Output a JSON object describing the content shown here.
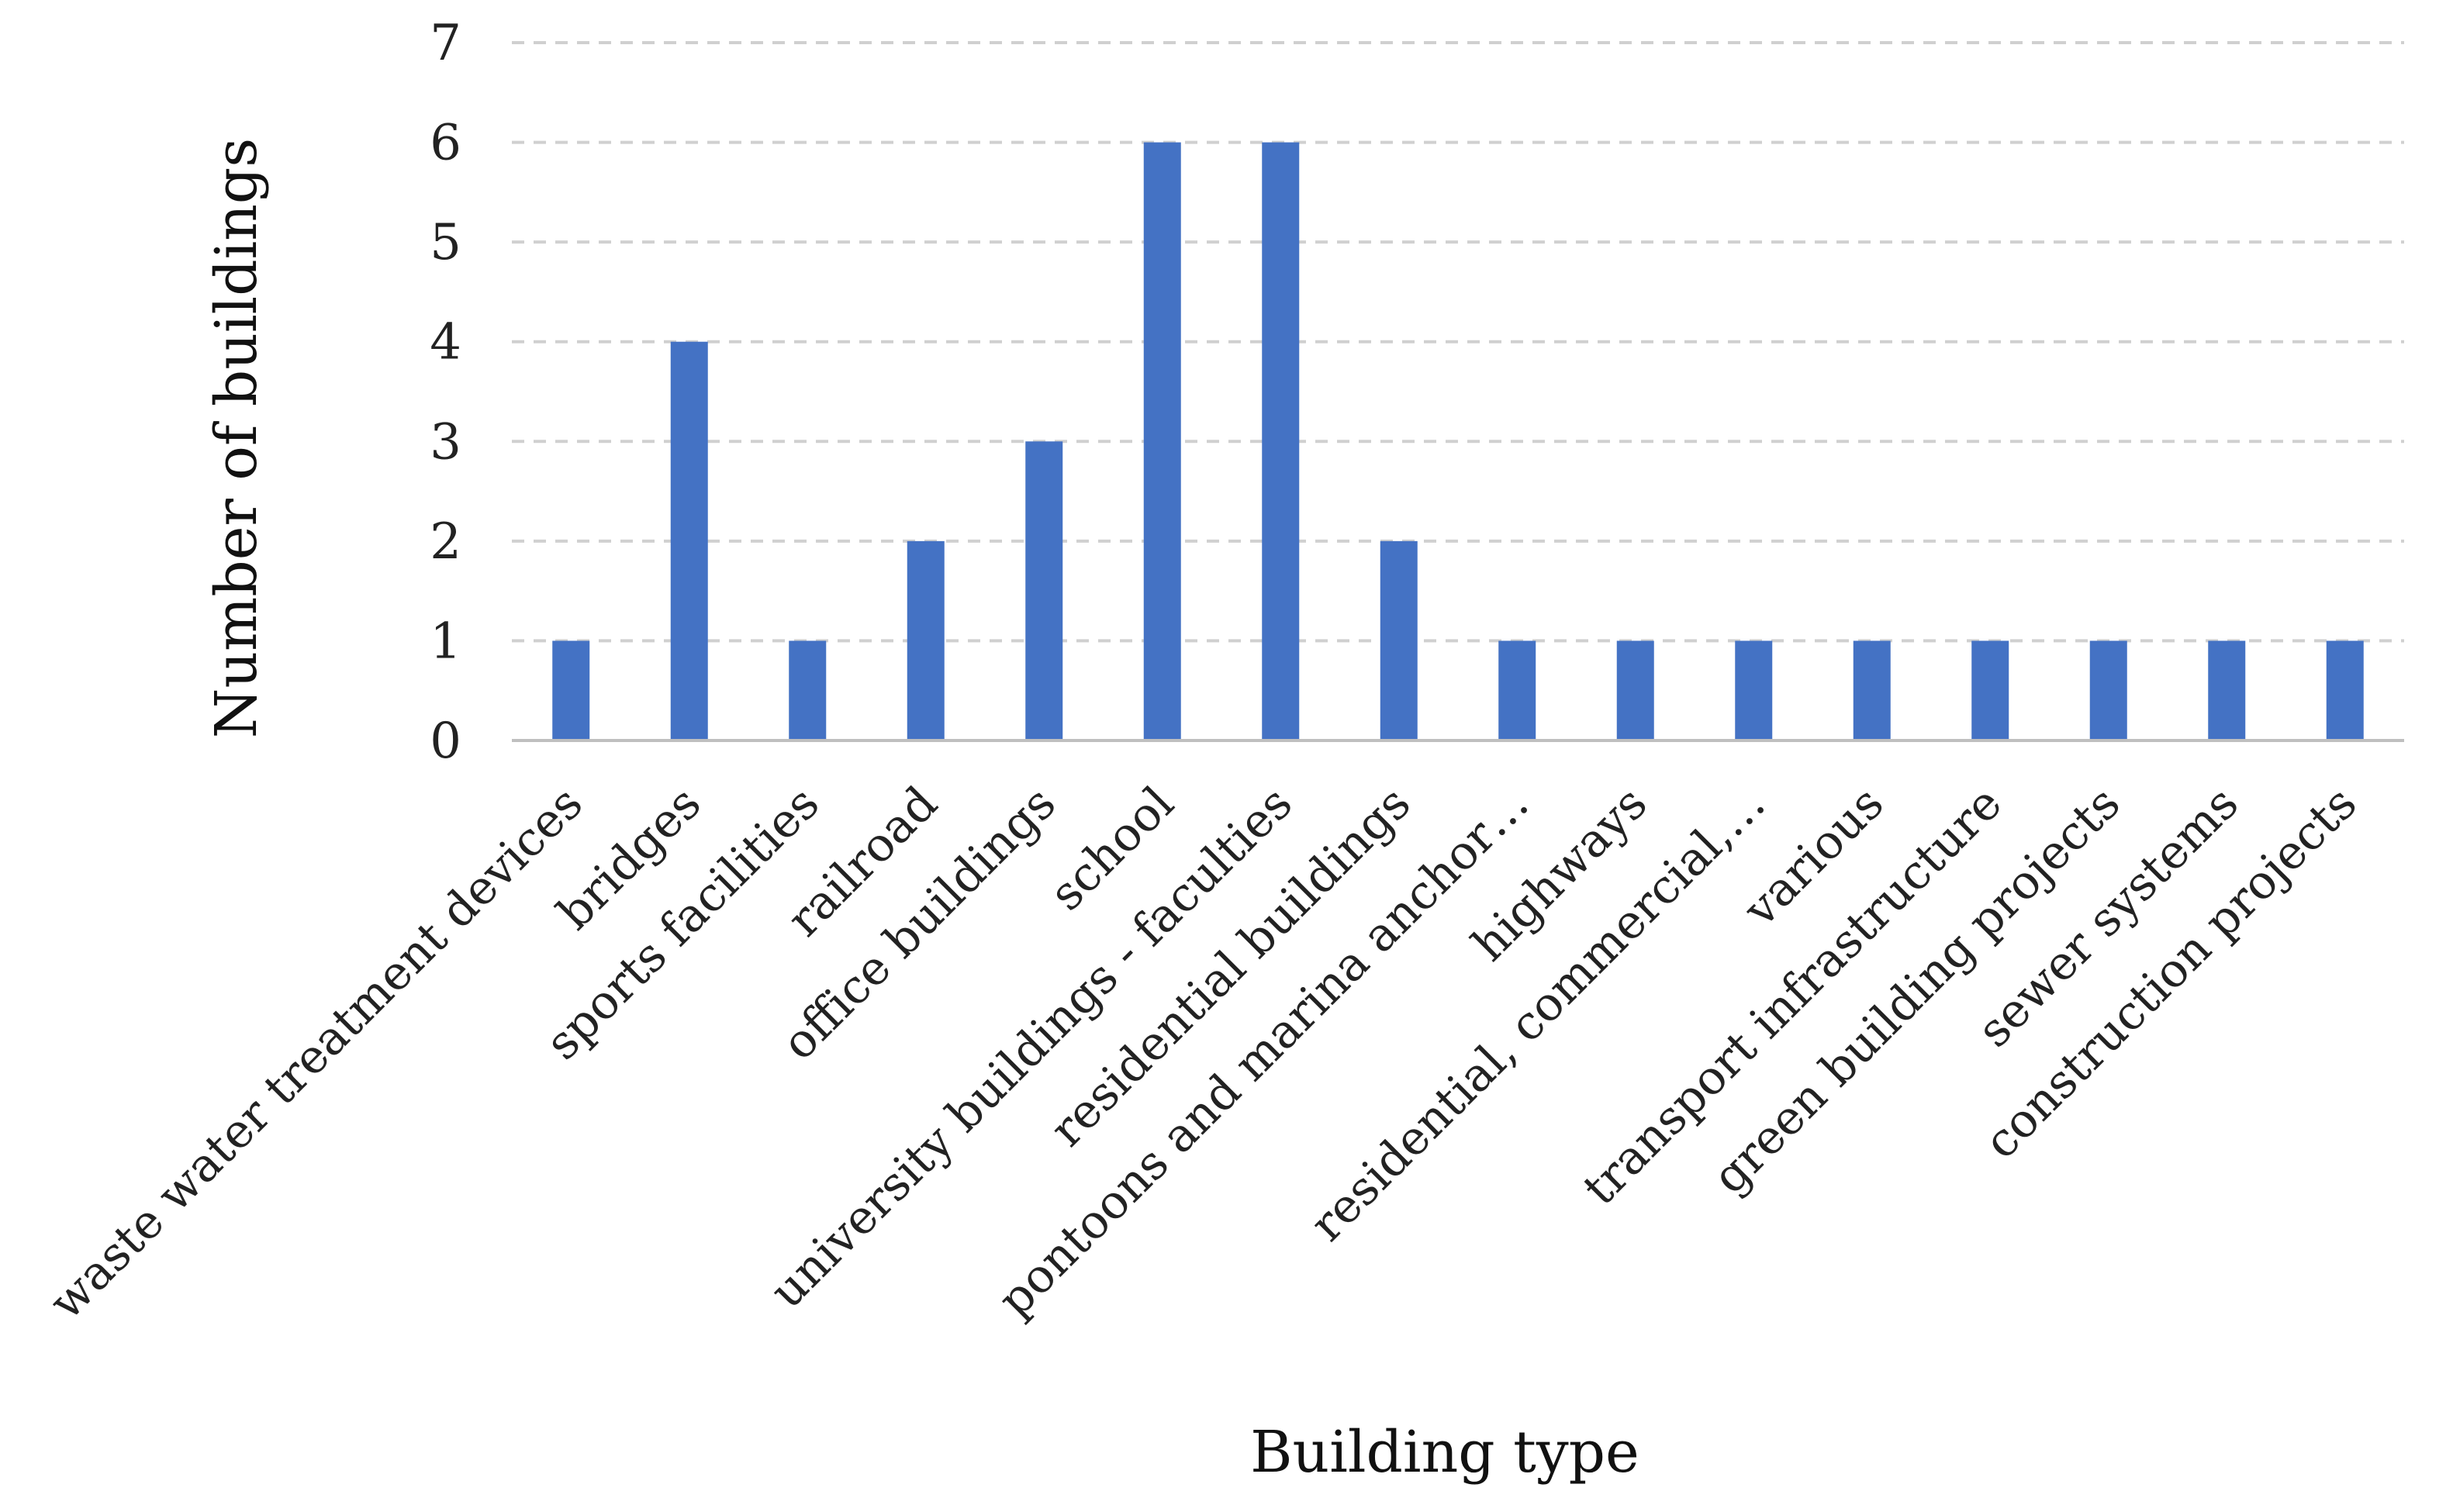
{
  "chart_data": {
    "type": "bar",
    "categories": [
      "waste water treatment devices",
      "bridges",
      "sports facilities",
      "railroad",
      "office buildings",
      "school",
      "university buildings - faculties",
      "residential buildings",
      "pontoons and marina anchor…",
      "highways",
      "residential, commercial,…",
      "various",
      "transport infrastructure",
      "green building projects",
      "sewer systems",
      "construction projects"
    ],
    "values": [
      1,
      4,
      1,
      2,
      3,
      6,
      6,
      2,
      1,
      1,
      1,
      1,
      1,
      1,
      1,
      1
    ],
    "title": "",
    "xlabel": "Building type",
    "ylabel": "Number of buildings",
    "ylim": [
      0,
      7
    ],
    "yticks": [
      "0",
      "1",
      "2",
      "3",
      "4",
      "5",
      "6",
      "7"
    ],
    "grid": true,
    "grid_style": "dashed",
    "legend": "none",
    "colors": {
      "bar": "#4472C4",
      "grid": "#D0D0D0",
      "axis": "#BFBFBF"
    }
  }
}
